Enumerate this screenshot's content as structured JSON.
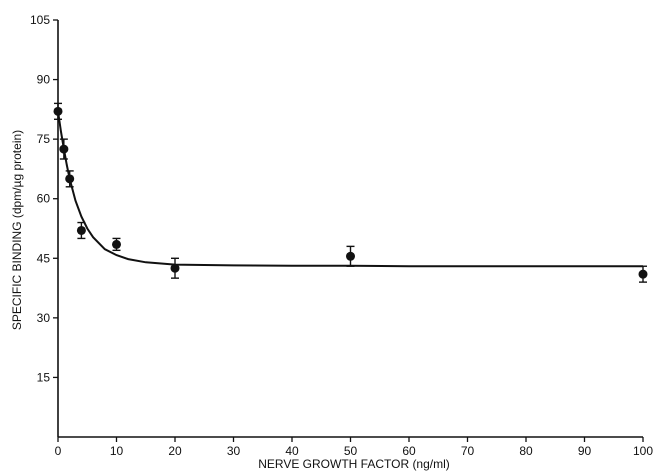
{
  "chart_data": {
    "type": "scatter",
    "xlabel": "NERVE GROWTH FACTOR (ng/ml)",
    "ylabel": "SPECIFIC BINDING (dpm/µg protein)",
    "xlim": [
      0,
      100
    ],
    "ylim": [
      0,
      105
    ],
    "x_ticks": [
      0,
      10,
      20,
      30,
      40,
      50,
      60,
      70,
      80,
      90,
      100
    ],
    "y_ticks": [
      15,
      30,
      45,
      60,
      75,
      90,
      105
    ],
    "grid": false,
    "series": [
      {
        "points": [
          {
            "x": 0,
            "y": 82,
            "err": 2
          },
          {
            "x": 1,
            "y": 72.5,
            "err": 2.5
          },
          {
            "x": 2,
            "y": 65,
            "err": 2
          },
          {
            "x": 4,
            "y": 52,
            "err": 2
          },
          {
            "x": 10,
            "y": 48.5,
            "err": 1.5
          },
          {
            "x": 20,
            "y": 42.5,
            "err": 2.5
          },
          {
            "x": 50,
            "y": 45.5,
            "err": 2.5
          },
          {
            "x": 100,
            "y": 41,
            "err": 2
          }
        ],
        "fit_curve": [
          [
            0,
            82
          ],
          [
            0.5,
            77
          ],
          [
            1,
            72.5
          ],
          [
            1.5,
            68.5
          ],
          [
            2,
            65
          ],
          [
            3,
            59.5
          ],
          [
            4,
            55.5
          ],
          [
            5,
            52.5
          ],
          [
            6,
            50.3
          ],
          [
            8,
            47.3
          ],
          [
            10,
            45.8
          ],
          [
            12,
            44.8
          ],
          [
            15,
            44
          ],
          [
            20,
            43.4
          ],
          [
            30,
            43.2
          ],
          [
            40,
            43.1
          ],
          [
            50,
            43.1
          ],
          [
            60,
            43
          ],
          [
            70,
            43
          ],
          [
            80,
            43
          ],
          [
            90,
            43
          ],
          [
            100,
            43
          ]
        ]
      }
    ]
  }
}
